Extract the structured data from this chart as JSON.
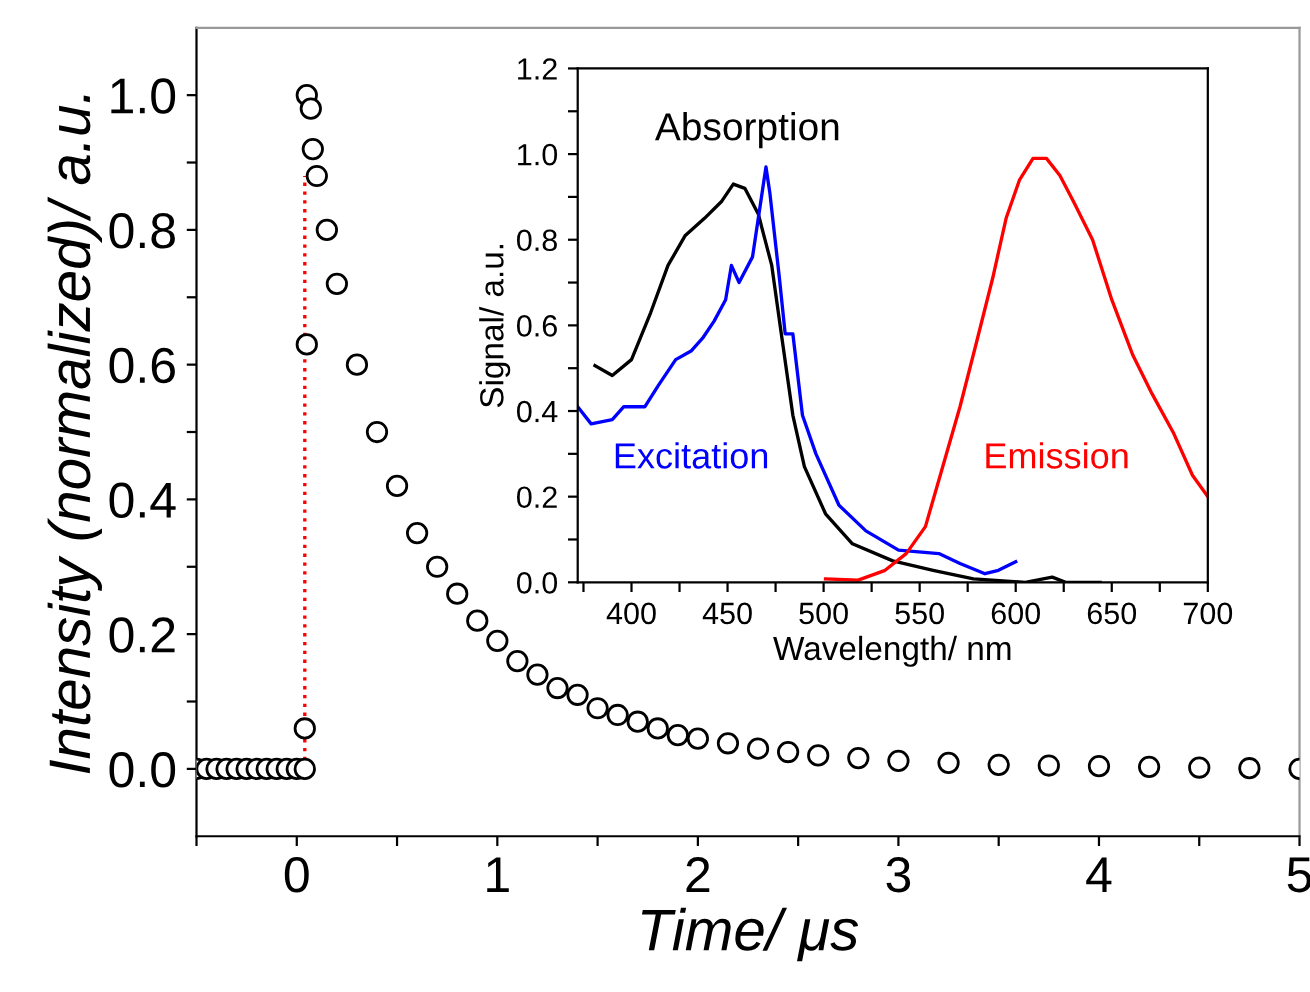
{
  "chart_data": [
    {
      "type": "scatter",
      "xlabel": "Time/ μs",
      "ylabel": "Intensity (normalized)/ a.u.",
      "xlim": [
        -0.5,
        5
      ],
      "ylim": [
        -0.1,
        1.1
      ],
      "xticks": [
        {
          "value": -0.5,
          "label": null
        },
        0,
        {
          "value": 0.5,
          "label": null
        },
        1,
        {
          "value": 1.5,
          "label": null
        },
        2,
        {
          "value": 2.5,
          "label": null
        },
        3,
        {
          "value": 3.5,
          "label": null
        },
        4,
        {
          "value": 4.5,
          "label": null
        },
        5
      ],
      "yticks": [
        {
          "value": 0,
          "label": "0.0"
        },
        {
          "value": 0.1,
          "label": null
        },
        {
          "value": 0.2,
          "label": "0.2"
        },
        {
          "value": 0.3,
          "label": null
        },
        {
          "value": 0.4,
          "label": "0.4"
        },
        {
          "value": 0.5,
          "label": null
        },
        {
          "value": 0.6,
          "label": "0.6"
        },
        {
          "value": 0.7,
          "label": null
        },
        {
          "value": 0.8,
          "label": "0.8"
        },
        {
          "value": 0.9,
          "label": null
        },
        {
          "value": 1.0,
          "label": "1.0"
        }
      ],
      "grid": false,
      "legend": false,
      "marker": "circle",
      "series": [
        {
          "type": "line",
          "color": "#ff0000",
          "line_style": "dotted",
          "marker": "none",
          "x": [
            0.04,
            0.04
          ],
          "values": [
            0,
            0.88
          ]
        },
        {
          "type": "scatter",
          "color": "#000000",
          "x": [
            -0.5,
            -0.45,
            -0.4,
            -0.35,
            -0.3,
            -0.25,
            -0.2,
            -0.15,
            -0.1,
            -0.05,
            0.0,
            0.04,
            0.04,
            0.05,
            0.05,
            0.07,
            0.08,
            0.1,
            0.15,
            0.2,
            0.3,
            0.4,
            0.5,
            0.6,
            0.7,
            0.8,
            0.9,
            1.0,
            1.1,
            1.2,
            1.3,
            1.4,
            1.5,
            1.6,
            1.7,
            1.8,
            1.9,
            2.0,
            2.15,
            2.3,
            2.45,
            2.6,
            2.8,
            3.0,
            3.25,
            3.5,
            3.75,
            4.0,
            4.25,
            4.5,
            4.75,
            5.0
          ],
          "values": [
            0,
            0,
            0,
            0,
            0,
            0,
            0,
            0,
            0,
            0,
            0,
            0,
            0.06,
            0.63,
            1.0,
            0.98,
            0.92,
            0.88,
            0.8,
            0.72,
            0.6,
            0.5,
            0.42,
            0.35,
            0.3,
            0.26,
            0.22,
            0.19,
            0.16,
            0.14,
            0.12,
            0.11,
            0.09,
            0.08,
            0.07,
            0.06,
            0.05,
            0.045,
            0.038,
            0.03,
            0.025,
            0.02,
            0.016,
            0.012,
            0.009,
            0.006,
            0.005,
            0.004,
            0.003,
            0.002,
            0.001,
            0.0
          ]
        }
      ]
    },
    {
      "type": "line",
      "xlabel": "Wavelength/ nm",
      "ylabel": "Signal/ a.u.",
      "xlim": [
        372,
        700
      ],
      "ylim": [
        0,
        1.2
      ],
      "xticks": [
        {
          "value": 375,
          "label": null
        },
        400,
        {
          "value": 425,
          "label": null
        },
        450,
        {
          "value": 475,
          "label": null
        },
        500,
        {
          "value": 525,
          "label": null
        },
        550,
        {
          "value": 575,
          "label": null
        },
        600,
        {
          "value": 625,
          "label": null
        },
        650,
        {
          "value": 675,
          "label": null
        },
        700
      ],
      "yticks": [
        {
          "value": 0,
          "label": "0.0"
        },
        {
          "value": 0.1,
          "label": null
        },
        {
          "value": 0.2,
          "label": "0.2"
        },
        {
          "value": 0.3,
          "label": null
        },
        {
          "value": 0.4,
          "label": "0.4"
        },
        {
          "value": 0.5,
          "label": null
        },
        {
          "value": 0.6,
          "label": "0.6"
        },
        {
          "value": 0.7,
          "label": null
        },
        {
          "value": 0.8,
          "label": "0.8"
        },
        {
          "value": 0.9,
          "label": null
        },
        {
          "value": 1.0,
          "label": "1.0"
        },
        {
          "value": 1.1,
          "label": null
        },
        {
          "value": 1.2,
          "label": "1.2"
        }
      ],
      "grid": false,
      "legend": false,
      "series": [
        {
          "name": "Absorption",
          "color": "#000000",
          "x": [
            381,
            390,
            400,
            410,
            419,
            428,
            438,
            447,
            453,
            459,
            466,
            473,
            478,
            484,
            490,
            501,
            515,
            536,
            557,
            578,
            605,
            619,
            626,
            644
          ],
          "values": [
            0.506,
            0.483,
            0.52,
            0.63,
            0.74,
            0.81,
            0.85,
            0.89,
            0.93,
            0.92,
            0.86,
            0.74,
            0.58,
            0.39,
            0.27,
            0.16,
            0.09,
            0.05,
            0.028,
            0.008,
            0.0,
            0.012,
            0.0,
            0.0
          ]
        },
        {
          "name": "Excitation",
          "color": "#0000ff",
          "x": [
            372,
            379,
            390,
            396,
            407,
            414,
            423,
            431,
            437,
            443,
            449,
            452,
            456,
            463,
            466,
            470,
            472,
            477,
            480,
            484,
            489,
            496,
            508,
            522,
            539,
            560,
            571,
            584,
            591,
            600
          ],
          "values": [
            0.41,
            0.37,
            0.38,
            0.41,
            0.41,
            0.46,
            0.52,
            0.54,
            0.57,
            0.61,
            0.66,
            0.74,
            0.7,
            0.76,
            0.85,
            0.97,
            0.91,
            0.71,
            0.58,
            0.58,
            0.39,
            0.3,
            0.18,
            0.12,
            0.075,
            0.067,
            0.044,
            0.02,
            0.028,
            0.048
          ]
        },
        {
          "name": "Emission",
          "color": "#ff0000",
          "x": [
            501,
            518,
            532,
            543,
            553,
            562,
            571,
            579,
            588,
            595,
            602,
            609,
            616,
            623,
            630,
            640,
            650,
            661,
            671,
            682,
            692,
            700
          ],
          "values": [
            0.008,
            0.005,
            0.028,
            0.067,
            0.13,
            0.27,
            0.41,
            0.55,
            0.71,
            0.85,
            0.94,
            0.99,
            0.99,
            0.95,
            0.89,
            0.8,
            0.66,
            0.53,
            0.44,
            0.35,
            0.25,
            0.2
          ]
        }
      ]
    }
  ]
}
